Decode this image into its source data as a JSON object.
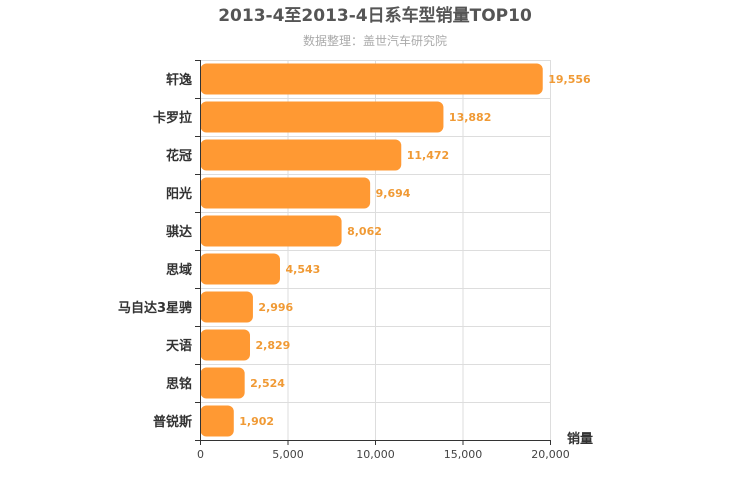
{
  "colors": {
    "bar": "#ff9933",
    "grid": "#dddddd",
    "axis": "#333333",
    "label": "#f09a35"
  },
  "chart_data": {
    "type": "bar",
    "orientation": "horizontal",
    "title": "2013-4至2013-4日系车型销量TOP10",
    "subtitle": "数据整理：盖世汽车研究院",
    "xlabel": "销量",
    "ylabel": "",
    "categories": [
      "轩逸",
      "卡罗拉",
      "花冠",
      "阳光",
      "骐达",
      "思域",
      "马自达3星骋",
      "天语",
      "思铭",
      "普锐斯"
    ],
    "values": [
      19556,
      13882,
      11472,
      9694,
      8062,
      4543,
      2996,
      2829,
      2524,
      1902
    ],
    "value_labels": [
      "19,556",
      "13,882",
      "11,472",
      "9,694",
      "8,062",
      "4,543",
      "2,996",
      "2,829",
      "2,524",
      "1,902"
    ],
    "xlim": [
      0,
      20000
    ],
    "xticks": [
      0,
      5000,
      10000,
      15000,
      20000
    ],
    "xtick_labels": [
      "0",
      "5,000",
      "10,000",
      "15,000",
      "20,000"
    ],
    "grid": true,
    "legend": "none"
  }
}
